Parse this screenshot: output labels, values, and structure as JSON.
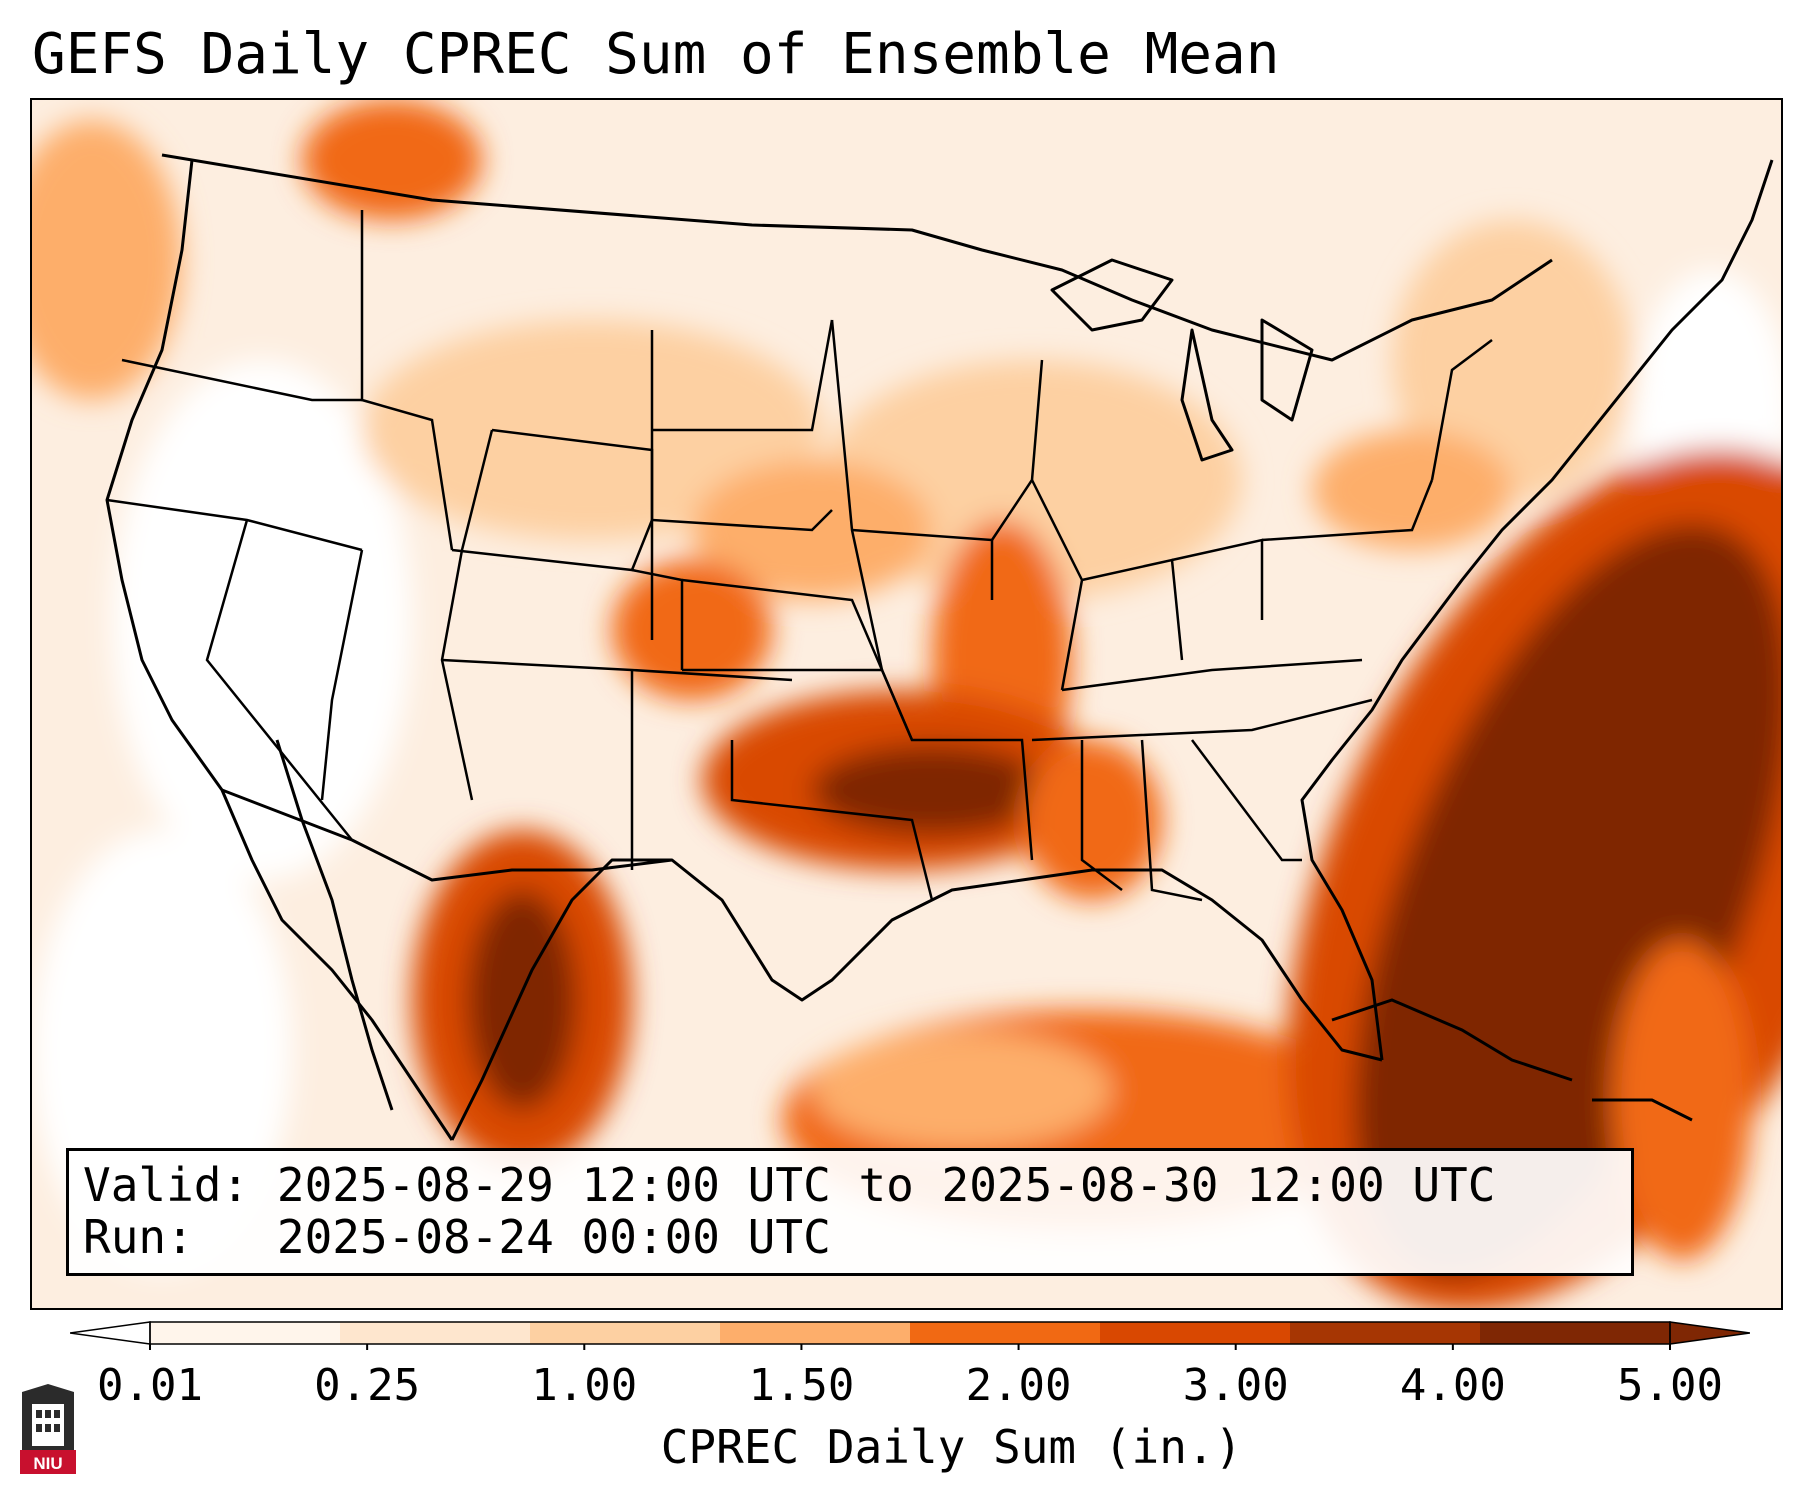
{
  "title": "GEFS Daily CPREC Sum of Ensemble Mean",
  "info": {
    "valid_label": "Valid:",
    "valid_value": "2025-08-29 12:00 UTC to 2025-08-30 12:00 UTC",
    "run_label": "Run:",
    "run_value": "2025-08-24 00:00 UTC"
  },
  "colorbar": {
    "label": "CPREC Daily Sum (in.)",
    "ticks": [
      "0.01",
      "0.25",
      "1.00",
      "1.50",
      "2.00",
      "3.00",
      "4.00",
      "5.00"
    ],
    "colors": [
      "#fff5eb",
      "#fee6ce",
      "#fdd0a2",
      "#fdae6b",
      "#f16913",
      "#d94801",
      "#a63603",
      "#7f2704"
    ],
    "under_color": "#ffffff",
    "over_color": "#7f2704",
    "extend": "both"
  },
  "map": {
    "region": "Continental United States, southern Canada, northern Mexico, Gulf of Mexico, western Atlantic",
    "coastlines": true,
    "state_borders": true,
    "country_borders": true
  },
  "logo": {
    "text": "NIU",
    "color": "#c8102e"
  }
}
